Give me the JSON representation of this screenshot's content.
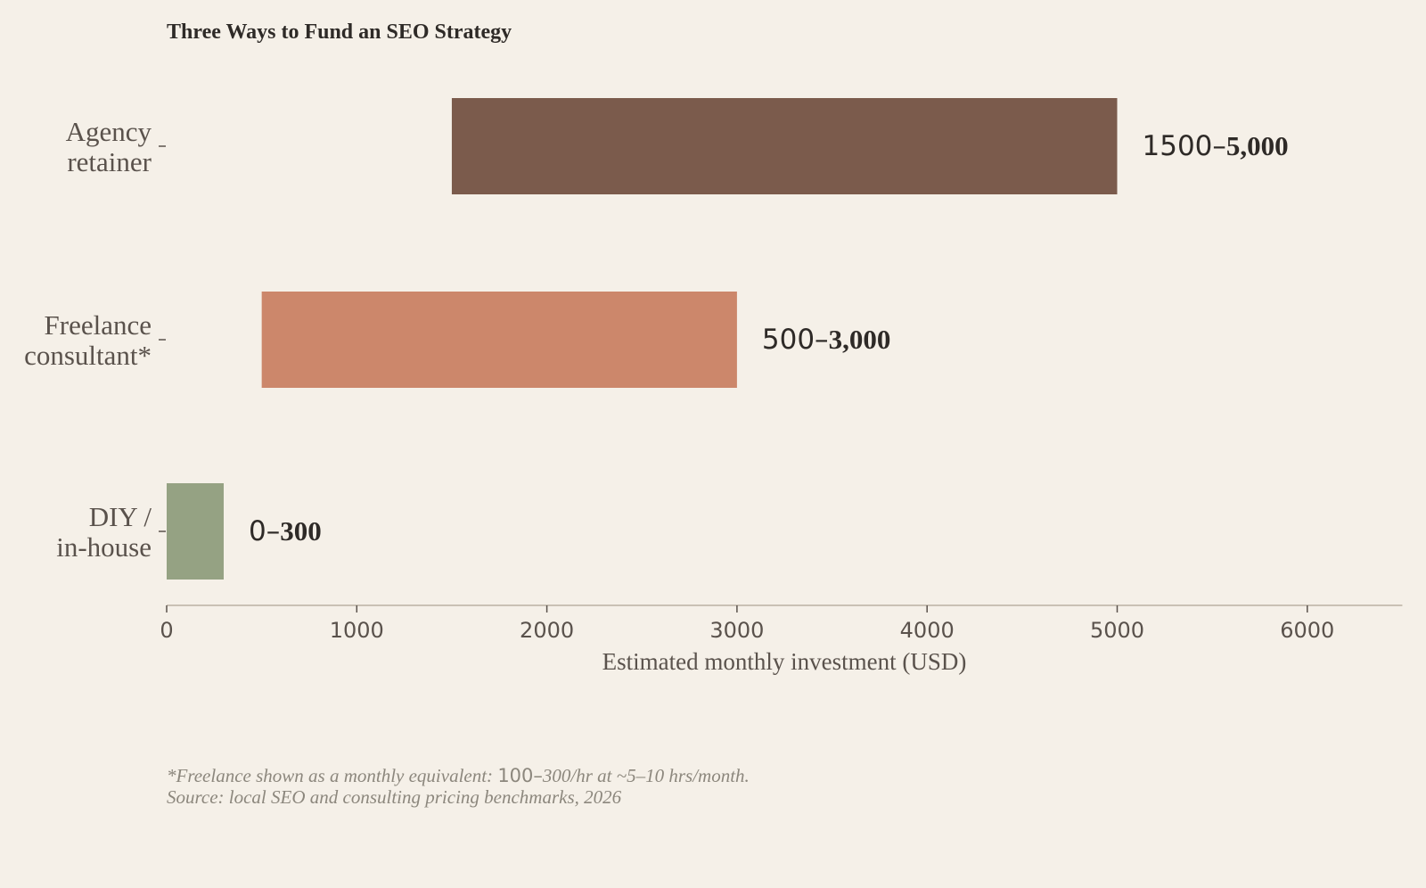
{
  "chart_data": {
    "type": "bar",
    "orientation": "horizontal",
    "title": "Three Ways to Fund an SEO Strategy",
    "xlabel": "Estimated monthly investment (USD)",
    "xlim": [
      0,
      6500
    ],
    "xticks": [
      0,
      1000,
      2000,
      3000,
      4000,
      5000,
      6000
    ],
    "grid": false,
    "categories": [
      {
        "lines": [
          "Agency",
          "retainer"
        ],
        "low": 1500,
        "high": 5000,
        "label_low": "1500–",
        "label_high": "5,000",
        "color": "#7b5b4c"
      },
      {
        "lines": [
          "Freelance",
          "consultant*"
        ],
        "low": 500,
        "high": 3000,
        "label_low": "500–",
        "label_high": "3,000",
        "color": "#cc876b"
      },
      {
        "lines": [
          "DIY /",
          "in-house"
        ],
        "low": 0,
        "high": 300,
        "label_low": "0–",
        "label_high": "300",
        "color": "#95a283"
      }
    ],
    "footnote": {
      "line1_pre": "*Freelance shown as a monthly equivalent: ",
      "line1_mono": "100–",
      "line1_post": "300/hr at ~5–10 hrs/month.",
      "line2": "Source: local SEO and consulting pricing benchmarks, 2026"
    }
  },
  "colors": {
    "background": "#f5f0e8",
    "axis": "#c9c1b4",
    "text_dark": "#2e2a27",
    "text_muted": "#5a524c",
    "footnote": "#8c877d"
  }
}
